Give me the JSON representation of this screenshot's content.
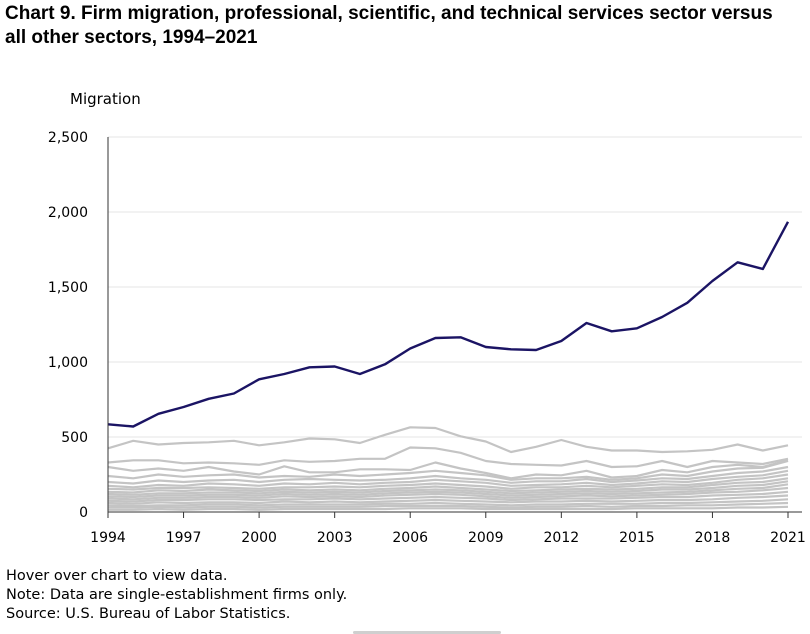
{
  "chart_data": {
    "type": "line",
    "title": "Chart 9. Firm migration, professional, scientific, and technical services sector versus all other sectors, 1994–2021",
    "ylabel": "Migration",
    "xlabel": "",
    "ylim": [
      0,
      2500
    ],
    "yticks": [
      "0",
      "500",
      "1,000",
      "1,500",
      "2,000",
      "2,500"
    ],
    "ytick_values": [
      0,
      500,
      1000,
      1500,
      2000,
      2500
    ],
    "xticks": [
      "1994",
      "1997",
      "2000",
      "2003",
      "2006",
      "2009",
      "2012",
      "2015",
      "2018",
      "2021"
    ],
    "x": [
      1994,
      1995,
      1996,
      1997,
      1998,
      1999,
      2000,
      2001,
      2002,
      2003,
      2004,
      2005,
      2006,
      2007,
      2008,
      2009,
      2010,
      2011,
      2012,
      2013,
      2014,
      2015,
      2016,
      2017,
      2018,
      2019,
      2020,
      2021
    ],
    "highlight_color": "#1b1464",
    "other_color": "#c4c4c4",
    "series": [
      {
        "values": [
          585,
          570,
          655,
          700,
          755,
          790,
          885,
          920,
          965,
          970,
          920,
          985,
          1090,
          1160,
          1165,
          1100,
          1085,
          1080,
          1140,
          1260,
          1205,
          1225,
          1300,
          1395,
          1540,
          1665,
          1620,
          1935
        ],
        "highlight": true
      },
      {
        "values": [
          425,
          475,
          450,
          460,
          465,
          475,
          445,
          465,
          490,
          485,
          460,
          515,
          565,
          560,
          505,
          470,
          400,
          435,
          480,
          435,
          410,
          410,
          400,
          405,
          415,
          450,
          410,
          445
        ]
      },
      {
        "values": [
          330,
          345,
          345,
          325,
          330,
          325,
          315,
          345,
          335,
          340,
          355,
          355,
          430,
          425,
          395,
          340,
          320,
          315,
          310,
          340,
          300,
          305,
          340,
          300,
          340,
          330,
          320,
          355
        ]
      },
      {
        "values": [
          300,
          275,
          290,
          275,
          300,
          270,
          250,
          305,
          265,
          265,
          285,
          285,
          280,
          330,
          290,
          260,
          225,
          250,
          245,
          275,
          230,
          240,
          280,
          265,
          300,
          315,
          300,
          345
        ]
      },
      {
        "values": [
          240,
          225,
          250,
          235,
          245,
          250,
          230,
          240,
          235,
          250,
          240,
          250,
          260,
          275,
          260,
          245,
          215,
          225,
          225,
          235,
          215,
          225,
          250,
          240,
          270,
          290,
          295,
          340
        ]
      },
      {
        "values": [
          200,
          190,
          210,
          200,
          210,
          215,
          200,
          215,
          220,
          215,
          210,
          215,
          225,
          240,
          225,
          215,
          195,
          205,
          205,
          220,
          200,
          210,
          225,
          220,
          240,
          260,
          270,
          300
        ]
      },
      {
        "values": [
          175,
          165,
          180,
          175,
          190,
          185,
          175,
          190,
          185,
          195,
          185,
          195,
          200,
          215,
          205,
          195,
          175,
          180,
          185,
          195,
          180,
          190,
          205,
          200,
          220,
          235,
          245,
          275
        ]
      },
      {
        "values": [
          155,
          150,
          160,
          160,
          165,
          160,
          155,
          165,
          165,
          170,
          165,
          175,
          180,
          190,
          180,
          170,
          155,
          165,
          165,
          175,
          165,
          175,
          185,
          180,
          195,
          215,
          225,
          250
        ]
      },
      {
        "values": [
          135,
          130,
          145,
          140,
          150,
          145,
          140,
          150,
          145,
          150,
          145,
          155,
          160,
          170,
          160,
          150,
          140,
          145,
          150,
          155,
          150,
          155,
          165,
          165,
          180,
          195,
          200,
          225
        ]
      },
      {
        "values": [
          120,
          115,
          125,
          125,
          130,
          130,
          125,
          135,
          130,
          135,
          130,
          140,
          145,
          150,
          145,
          135,
          125,
          130,
          135,
          140,
          135,
          140,
          150,
          150,
          160,
          175,
          180,
          205
        ]
      },
      {
        "values": [
          105,
          100,
          110,
          110,
          115,
          115,
          110,
          120,
          115,
          120,
          115,
          125,
          130,
          135,
          130,
          120,
          110,
          115,
          120,
          125,
          120,
          125,
          130,
          135,
          145,
          155,
          160,
          185
        ]
      },
      {
        "values": [
          90,
          85,
          95,
          95,
          100,
          100,
          95,
          105,
          100,
          105,
          100,
          110,
          115,
          120,
          115,
          105,
          95,
          100,
          105,
          110,
          105,
          110,
          115,
          120,
          130,
          135,
          145,
          160
        ]
      },
      {
        "values": [
          75,
          70,
          80,
          80,
          85,
          85,
          80,
          85,
          85,
          90,
          85,
          90,
          95,
          100,
          95,
          90,
          80,
          85,
          90,
          90,
          90,
          95,
          100,
          100,
          110,
          115,
          120,
          135
        ]
      },
      {
        "values": [
          60,
          55,
          65,
          60,
          65,
          65,
          60,
          70,
          65,
          70,
          65,
          70,
          75,
          80,
          75,
          70,
          65,
          70,
          70,
          75,
          70,
          75,
          80,
          80,
          85,
          95,
          100,
          110
        ]
      },
      {
        "values": [
          45,
          40,
          45,
          45,
          50,
          50,
          45,
          50,
          50,
          50,
          50,
          55,
          55,
          60,
          55,
          50,
          45,
          50,
          50,
          55,
          55,
          55,
          60,
          60,
          65,
          70,
          75,
          85
        ]
      },
      {
        "values": [
          30,
          30,
          35,
          30,
          35,
          35,
          30,
          35,
          35,
          35,
          35,
          40,
          40,
          40,
          40,
          35,
          30,
          35,
          35,
          40,
          35,
          40,
          40,
          45,
          45,
          50,
          55,
          60
        ]
      },
      {
        "values": [
          15,
          15,
          20,
          15,
          20,
          20,
          15,
          20,
          20,
          20,
          20,
          20,
          25,
          25,
          25,
          20,
          20,
          20,
          20,
          20,
          20,
          25,
          25,
          25,
          25,
          30,
          30,
          35
        ]
      }
    ]
  },
  "footer": {
    "hover_hint": "Hover over chart to view data.",
    "note": "Note: Data are single-establishment firms only.",
    "source": "Source: U.S. Bureau of Labor Statistics."
  }
}
